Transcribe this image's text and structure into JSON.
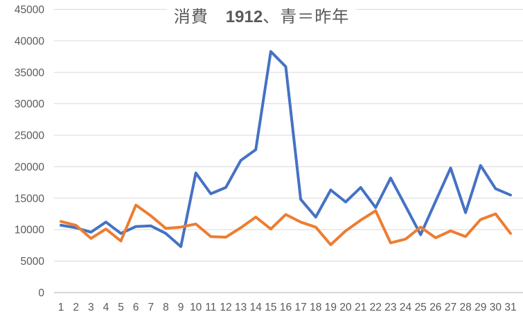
{
  "chart": {
    "title_parts": {
      "prefix": "消費　",
      "number": "1912",
      "suffix": "、青＝昨年"
    },
    "colors": {
      "series_blue": "#4472C4",
      "series_orange": "#ED7D31",
      "gridline": "#D9D9D9",
      "axis_line": "#BFBFBF",
      "text": "#595959",
      "background": "#FFFFFF"
    }
  },
  "chart_data": {
    "type": "line",
    "title": "消費　1912、青＝昨年",
    "xlabel": "",
    "ylabel": "",
    "x": [
      1,
      2,
      3,
      4,
      5,
      6,
      7,
      8,
      9,
      10,
      11,
      12,
      13,
      14,
      15,
      16,
      17,
      18,
      19,
      20,
      21,
      22,
      23,
      24,
      25,
      26,
      27,
      28,
      29,
      30,
      31
    ],
    "series": [
      {
        "name": "青＝昨年",
        "color": "#4472C4",
        "values": [
          10700,
          10300,
          9600,
          11200,
          9400,
          10500,
          10600,
          9400,
          7300,
          19000,
          15700,
          16700,
          21000,
          22700,
          38300,
          35900,
          14800,
          12000,
          16300,
          14400,
          16700,
          13500,
          18200,
          13700,
          9200,
          14500,
          19800,
          12700,
          20200,
          16500,
          15500
        ]
      },
      {
        "name": "",
        "color": "#ED7D31",
        "values": [
          11300,
          10700,
          8600,
          10100,
          8200,
          13900,
          12200,
          10200,
          10400,
          10900,
          8900,
          8800,
          10300,
          12000,
          10100,
          12400,
          11200,
          10400,
          7600,
          9800,
          11500,
          13000,
          7900,
          8500,
          10400,
          8700,
          9800,
          8900,
          11600,
          12500,
          9400
        ]
      }
    ],
    "ylim": [
      0,
      45000
    ],
    "ytick_step": 5000,
    "ytick_labels": [
      "0",
      "5000",
      "10000",
      "15000",
      "20000",
      "25000",
      "30000",
      "35000",
      "40000",
      "45000"
    ],
    "grid": true,
    "legend_position": "none"
  }
}
